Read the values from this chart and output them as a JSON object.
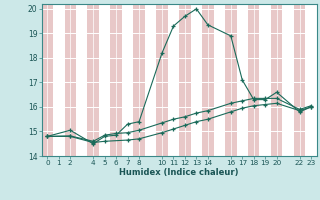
{
  "xlabel": "Humidex (Indice chaleur)",
  "bg_color": "#cce8e8",
  "grid_color": "#ffffff",
  "alt_grid_color": "#e8c8c8",
  "line_color": "#1a6b5a",
  "xlim": [
    -0.5,
    23.5
  ],
  "ylim": [
    14,
    20.2
  ],
  "xticks": [
    0,
    1,
    2,
    4,
    5,
    6,
    7,
    8,
    10,
    11,
    12,
    13,
    14,
    16,
    17,
    18,
    19,
    20,
    22,
    23
  ],
  "yticks": [
    14,
    15,
    16,
    17,
    18,
    19,
    20
  ],
  "line1_x": [
    0,
    2,
    4,
    5,
    6,
    7,
    8,
    10,
    11,
    12,
    13,
    14,
    16,
    17,
    18,
    19,
    20,
    22,
    23
  ],
  "line1_y": [
    14.8,
    15.05,
    14.5,
    14.8,
    14.85,
    15.3,
    15.4,
    18.2,
    19.3,
    19.7,
    20.0,
    19.35,
    18.9,
    17.1,
    16.3,
    16.3,
    16.6,
    15.8,
    16.0
  ],
  "line2_x": [
    0,
    2,
    4,
    5,
    6,
    7,
    8,
    10,
    11,
    12,
    13,
    14,
    16,
    17,
    18,
    19,
    20,
    22,
    23
  ],
  "line2_y": [
    14.8,
    14.82,
    14.6,
    14.85,
    14.92,
    14.95,
    15.05,
    15.35,
    15.5,
    15.6,
    15.75,
    15.85,
    16.15,
    16.25,
    16.35,
    16.35,
    16.35,
    15.9,
    16.05
  ],
  "line3_x": [
    0,
    2,
    4,
    5,
    7,
    8,
    10,
    11,
    12,
    13,
    14,
    16,
    17,
    18,
    19,
    20,
    22,
    23
  ],
  "line3_y": [
    14.8,
    14.8,
    14.55,
    14.6,
    14.65,
    14.7,
    14.95,
    15.1,
    15.25,
    15.4,
    15.5,
    15.8,
    15.95,
    16.05,
    16.1,
    16.15,
    15.85,
    16.0
  ]
}
